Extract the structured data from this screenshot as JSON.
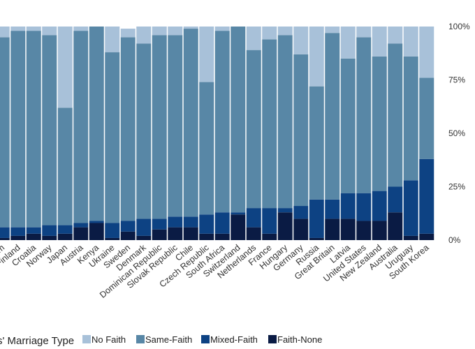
{
  "chart_data": {
    "type": "bar",
    "stacked": true,
    "yaxis_side": "right",
    "ylim": [
      0,
      100
    ],
    "yticks": [
      "0%",
      "25%",
      "50%",
      "75%",
      "100%"
    ],
    "categories": [
      "um",
      "Finland",
      "Croatia",
      "Norway",
      "Japan",
      "Austria",
      "Kenya",
      "Ukraine",
      "Sweden",
      "Denmark",
      "Dominican Republic",
      "Slovak Republic",
      "Chile",
      "Czech Republic",
      "South Africa",
      "Switzerland",
      "Netherlands",
      "France",
      "Hungary",
      "Germany",
      "Russia",
      "Great Britain",
      "Latvia",
      "United States",
      "New Zealand",
      "Australia",
      "Uruguay",
      "South Korea"
    ],
    "legend": {
      "title": "s' Marriage Type",
      "position": "bottom-left"
    },
    "series": [
      {
        "name": "Faith-None",
        "color": "#0a1b44",
        "values": [
          1,
          2,
          3,
          2,
          3,
          6,
          8,
          1,
          4,
          2,
          5,
          6,
          6,
          3,
          3,
          12,
          6,
          3,
          13,
          10,
          1,
          10,
          10,
          9,
          9,
          13,
          2,
          3
        ]
      },
      {
        "name": "Mixed-Faith",
        "color": "#0d4283",
        "values": [
          5,
          4,
          3,
          5,
          4,
          2,
          1,
          7,
          5,
          8,
          5,
          5,
          5,
          9,
          10,
          1,
          9,
          12,
          2,
          6,
          18,
          9,
          12,
          13,
          14,
          12,
          26,
          35
        ]
      },
      {
        "name": "Same-Faith",
        "color": "#5887a6",
        "values": [
          89,
          92,
          92,
          89,
          55,
          90,
          91,
          80,
          86,
          82,
          86,
          85,
          88,
          62,
          85,
          87,
          74,
          79,
          81,
          71,
          53,
          78,
          63,
          73,
          63,
          67,
          58,
          38
        ]
      },
      {
        "name": "No Faith",
        "color": "#a8c1d9",
        "values": [
          5,
          2,
          2,
          4,
          38,
          2,
          0,
          12,
          4,
          8,
          4,
          4,
          1,
          26,
          2,
          0,
          11,
          6,
          4,
          13,
          28,
          3,
          15,
          5,
          14,
          8,
          14,
          24
        ]
      }
    ]
  }
}
